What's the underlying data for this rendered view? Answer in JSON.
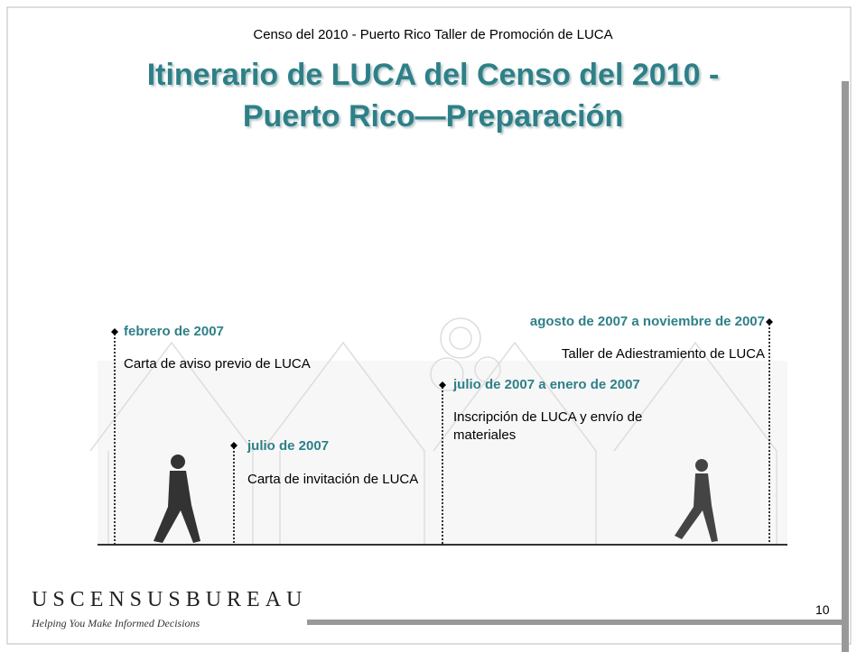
{
  "header": {
    "subtitle": "Censo del 2010 - Puerto Rico Taller de Promoción de LUCA",
    "title_lines": [
      "Itinerario de LUCA del Censo del 2010 -",
      "Puerto Rico—Preparación"
    ]
  },
  "events": [
    {
      "date": "febrero de 2007",
      "description": "Carta de aviso previo de LUCA"
    },
    {
      "date": "julio de 2007",
      "description": "Carta de invitación de LUCA"
    },
    {
      "date": "julio de 2007 a enero de 2007",
      "description": "Inscripción de LUCA y envío de materiales"
    },
    {
      "date": "agosto de 2007 a noviembre de 2007",
      "description": "Taller de Adiestramiento de LUCA"
    }
  ],
  "footer": {
    "logo": "USCENSUSBUREAU",
    "tagline": "Helping You Make Informed Decisions",
    "page_number": "10"
  }
}
